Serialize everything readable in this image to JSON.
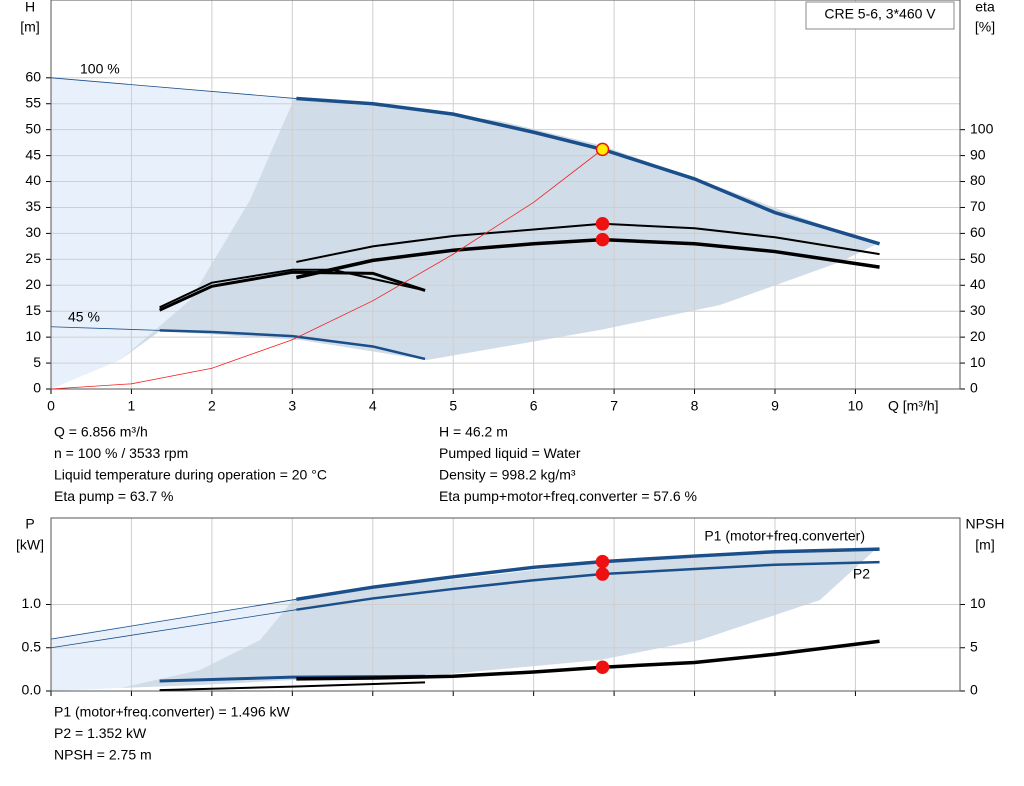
{
  "chart_data": [
    {
      "type": "line",
      "model_box": "CRE 5-6, 3*460 V",
      "y_title": "H",
      "y_unit": "[m]",
      "y2_title": "eta",
      "y2_unit": "[%]",
      "x_title": "Q [m³/h]",
      "xlim": [
        0,
        11.3
      ],
      "xticks": [
        0,
        1,
        2,
        3,
        4,
        5,
        6,
        7,
        8,
        9,
        10
      ],
      "ylim": [
        0,
        75
      ],
      "yticks": [
        0,
        5,
        10,
        15,
        20,
        25,
        30,
        35,
        40,
        45,
        50,
        55,
        60
      ],
      "y2lim": [
        0,
        150
      ],
      "y2ticks": [
        0,
        10,
        20,
        30,
        40,
        50,
        60,
        70,
        80,
        90,
        100
      ],
      "series": [
        {
          "name": "100 %",
          "color": "#1a4f8a",
          "width": 0.8,
          "x": [
            0,
            3.05
          ],
          "values": [
            60,
            56
          ]
        },
        {
          "color": "#1a4f8a",
          "width": 3.5,
          "x": [
            3.05,
            4,
            5,
            6,
            6.856,
            8,
            9,
            10.3
          ],
          "values": [
            56,
            55,
            53,
            49.5,
            46.2,
            40.5,
            34,
            28
          ]
        },
        {
          "name": "45 %",
          "color": "#1a4f8a",
          "width": 0.8,
          "x": [
            0,
            1.35
          ],
          "values": [
            12,
            11.3
          ]
        },
        {
          "color": "#1a4f8a",
          "width": 2.5,
          "x": [
            1.35,
            2,
            3,
            4,
            4.65
          ],
          "values": [
            11.3,
            11,
            10.2,
            8.2,
            5.8
          ]
        },
        {
          "color": "#000000",
          "width": 2,
          "axis": "y2",
          "x": [
            3.05,
            4,
            5,
            6,
            6.856,
            8,
            9,
            10.3
          ],
          "values": [
            49,
            55,
            59,
            61.5,
            63.7,
            62,
            58.5,
            52
          ]
        },
        {
          "color": "#000000",
          "width": 3.5,
          "axis": "y2",
          "x": [
            3.05,
            4,
            5,
            6,
            6.856,
            8,
            9,
            10.3
          ],
          "values": [
            43,
            49.6,
            53.5,
            56,
            57.6,
            56,
            53,
            47
          ]
        },
        {
          "color": "#000000",
          "width": 2,
          "axis": "y2",
          "x": [
            1.35,
            2,
            3,
            3.5,
            4.65
          ],
          "values": [
            31.5,
            41,
            46,
            46,
            38
          ]
        },
        {
          "color": "#000000",
          "width": 3,
          "axis": "y2",
          "x": [
            1.35,
            2,
            3,
            4,
            4.65
          ],
          "values": [
            30.4,
            39.6,
            45,
            44.6,
            38
          ]
        },
        {
          "color": "#ee2222",
          "width": 0.8,
          "x": [
            0,
            1,
            2,
            3,
            4,
            5,
            6,
            6.856
          ],
          "values": [
            0,
            1,
            4,
            9.5,
            17,
            26,
            36,
            46.2
          ]
        }
      ],
      "markers": [
        {
          "x": 6.856,
          "y": 46.2,
          "color": "#ffee00"
        },
        {
          "x": 6.856,
          "y": 63.7,
          "axis": "y2",
          "color": "#ee1111"
        },
        {
          "x": 6.856,
          "y": 57.6,
          "axis": "y2",
          "color": "#ee1111"
        }
      ]
    },
    {
      "type": "line",
      "y_title": "P",
      "y_unit": "[kW]",
      "y2_title": "NPSH",
      "y2_unit": "[m]",
      "xlim": [
        0,
        11.3
      ],
      "xticks": [
        0,
        1,
        2,
        3,
        4,
        5,
        6,
        7,
        8,
        9,
        10
      ],
      "ylim": [
        0,
        2
      ],
      "yticks": [
        {
          "value": 0,
          "label": "0.0"
        },
        0.5,
        {
          "value": 1,
          "label": "1.0"
        }
      ],
      "y2lim": [
        0,
        20
      ],
      "y2ticks": [
        0,
        5,
        10
      ],
      "series": [
        {
          "color": "#1a4f8a",
          "width": 0.8,
          "x": [
            0,
            3.05
          ],
          "values": [
            0.6,
            1.06
          ]
        },
        {
          "name": "P1 (motor+freq.converter)",
          "color": "#1a4f8a",
          "width": 3.5,
          "x": [
            3.05,
            4,
            5,
            6,
            6.856,
            8,
            9,
            10.3
          ],
          "values": [
            1.06,
            1.2,
            1.32,
            1.43,
            1.496,
            1.56,
            1.61,
            1.64
          ]
        },
        {
          "color": "#1a4f8a",
          "width": 0.8,
          "x": [
            0,
            3.05
          ],
          "values": [
            0.5,
            0.94
          ]
        },
        {
          "name": "P2",
          "color": "#1a4f8a",
          "width": 2.5,
          "x": [
            3.05,
            4,
            5,
            6,
            6.856,
            8,
            9,
            10.3
          ],
          "values": [
            0.94,
            1.07,
            1.18,
            1.28,
            1.352,
            1.41,
            1.46,
            1.49
          ]
        },
        {
          "color": "#1a4f8a",
          "width": 3,
          "x": [
            1.35,
            3,
            4.65
          ],
          "values": [
            0.115,
            0.16,
            0.17
          ]
        },
        {
          "color": "#000000",
          "width": 3.5,
          "axis": "y2",
          "x": [
            3.05,
            4,
            5,
            6,
            6.856,
            8,
            9,
            10.3
          ],
          "values": [
            1.4,
            1.5,
            1.7,
            2.2,
            2.75,
            3.3,
            4.25,
            5.75
          ]
        },
        {
          "color": "#000000",
          "width": 2,
          "axis": "y2",
          "x": [
            1.35,
            3,
            4.65
          ],
          "values": [
            0.1,
            0.5,
            1.0
          ]
        }
      ],
      "markers": [
        {
          "x": 6.856,
          "y": 1.496,
          "color": "#ee1111"
        },
        {
          "x": 6.856,
          "y": 1.352,
          "color": "#ee1111"
        },
        {
          "x": 6.856,
          "y": 2.75,
          "axis": "y2",
          "color": "#ee1111"
        }
      ]
    }
  ],
  "info_top_left": [
    "Q = 6.856 m³/h",
    "n = 100 % / 3533 rpm",
    "Liquid temperature during operation = 20 °C",
    "Eta pump = 63.7 %"
  ],
  "info_top_right": [
    "H = 46.2 m",
    "Pumped liquid = Water",
    "Density = 998.2 kg/m³",
    "Eta pump+motor+freq.converter = 57.6 %"
  ],
  "info_bottom": [
    "P1 (motor+freq.converter) = 1.496 kW",
    "P2 = 1.352 kW",
    "NPSH = 2.75 m"
  ]
}
